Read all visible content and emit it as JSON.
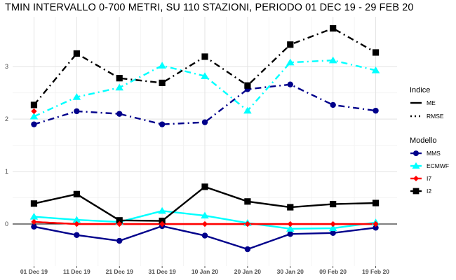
{
  "chart_data": {
    "type": "line",
    "title": "TMIN INTERVALLO 0-700 METRI, SU 110 STAZIONI, PERIODO 01 DEC 19  -  29 FEB 20",
    "xlabel": "",
    "ylabel": "",
    "categories": [
      "01 Dec 19",
      "11 Dec 19",
      "21 Dec 19",
      "31 Dec 19",
      "10 Jan 20",
      "20 Jan 20",
      "30 Jan 20",
      "09 Feb 20",
      "19 Feb 20"
    ],
    "y_ticks": [
      0,
      1,
      2,
      3
    ],
    "ylim": [
      -0.8,
      3.95
    ],
    "grid": true,
    "reference_line_y": 0,
    "series": [
      {
        "name": "MMS",
        "indice": "RMSE",
        "color": "#00008b",
        "marker": "circle",
        "values": [
          1.9,
          2.15,
          2.1,
          1.9,
          1.94,
          2.57,
          2.66,
          2.27,
          2.16
        ]
      },
      {
        "name": "ECMWF",
        "indice": "RMSE",
        "color": "#00ffff",
        "marker": "triangle",
        "values": [
          2.05,
          2.42,
          2.6,
          3.02,
          2.82,
          2.16,
          3.08,
          3.12,
          2.93
        ]
      },
      {
        "name": "I7",
        "indice": "RMSE",
        "color": "#ff0000",
        "marker": "diamond",
        "values": [
          2.15,
          null,
          null,
          null,
          null,
          null,
          null,
          null,
          null
        ]
      },
      {
        "name": "I2",
        "indice": "RMSE",
        "color": "#000000",
        "marker": "square",
        "values": [
          2.27,
          3.25,
          2.78,
          2.69,
          3.19,
          2.64,
          3.42,
          3.73,
          3.27
        ]
      },
      {
        "name": "MMS",
        "indice": "ME",
        "color": "#00008b",
        "marker": "circle",
        "values": [
          -0.05,
          -0.21,
          -0.32,
          -0.04,
          -0.22,
          -0.48,
          -0.19,
          -0.17,
          -0.07
        ]
      },
      {
        "name": "ECMWF",
        "indice": "ME",
        "color": "#00ffff",
        "marker": "triangle",
        "values": [
          0.14,
          0.08,
          0.04,
          0.25,
          0.16,
          0.02,
          -0.09,
          -0.08,
          0.03
        ]
      },
      {
        "name": "I7",
        "indice": "ME",
        "color": "#ff0000",
        "marker": "diamond",
        "values": [
          0.04,
          0.0,
          0.0,
          0.0,
          0.0,
          0.0,
          0.0,
          0.0,
          0.0
        ]
      },
      {
        "name": "I2",
        "indice": "ME",
        "color": "#000000",
        "marker": "square",
        "values": [
          0.39,
          0.57,
          0.07,
          0.06,
          0.71,
          0.43,
          0.32,
          0.38,
          0.4
        ]
      }
    ],
    "legend": {
      "placement": "right",
      "indice_title": "Indice",
      "indice_entries": [
        {
          "label": "ME",
          "linetype": "solid"
        },
        {
          "label": "RMSE",
          "linetype": "dotdash"
        }
      ],
      "modello_title": "Modello",
      "modello_entries": [
        {
          "label": "MMS",
          "color": "#00008b",
          "marker": "circle"
        },
        {
          "label": "ECMWF",
          "color": "#00ffff",
          "marker": "triangle"
        },
        {
          "label": "I7",
          "color": "#ff0000",
          "marker": "diamond"
        },
        {
          "label": "I2",
          "color": "#000000",
          "marker": "square"
        }
      ]
    }
  }
}
